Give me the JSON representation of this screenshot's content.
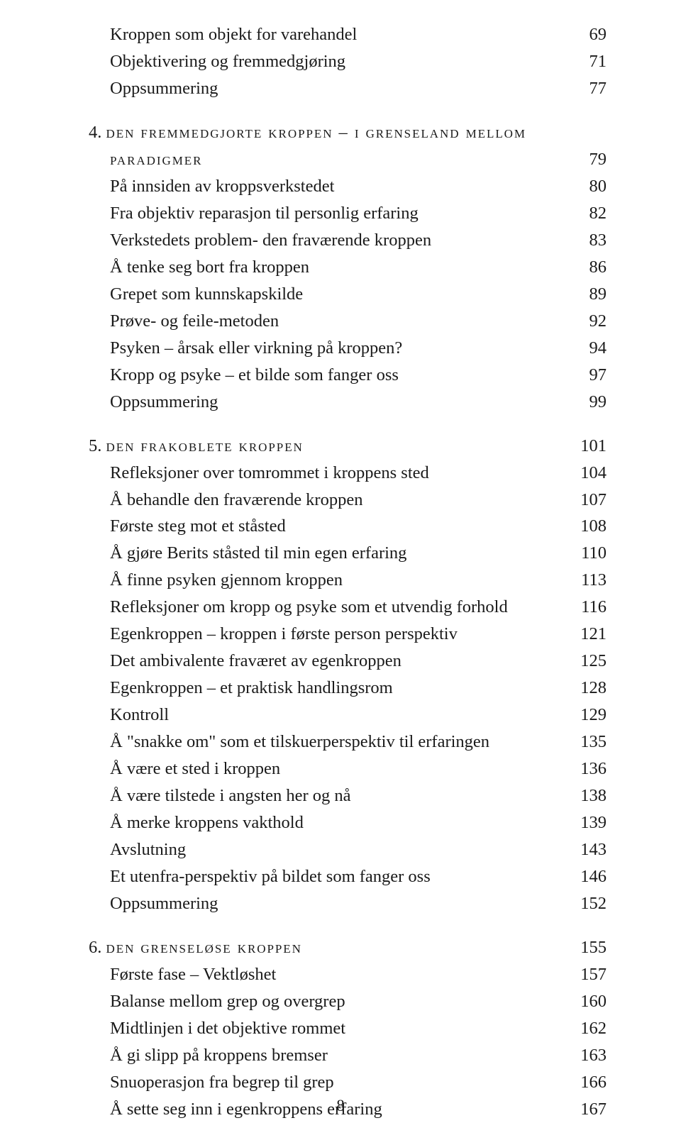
{
  "intro_rows": [
    {
      "label": "Kroppen som objekt for varehandel",
      "page": "69"
    },
    {
      "label": "Objektivering og fremmedgjøring",
      "page": "71"
    },
    {
      "label": "Oppsummering",
      "page": "77"
    }
  ],
  "chapters": [
    {
      "num": "4.",
      "title": "den fremmedgjorte kroppen – i grenseland mellom",
      "title2": "paradigmer",
      "page": "79",
      "rows": [
        {
          "label": "På innsiden av kroppsverkstedet",
          "page": "80"
        },
        {
          "label": "Fra objektiv reparasjon til personlig erfaring",
          "page": "82"
        },
        {
          "label": "Verkstedets problem- den fraværende kroppen",
          "page": "83"
        },
        {
          "label": "Å tenke seg bort fra kroppen",
          "page": "86"
        },
        {
          "label": "Grepet som kunnskapskilde",
          "page": "89"
        },
        {
          "label": "Prøve- og feile-metoden",
          "page": "92"
        },
        {
          "label": "Psyken – årsak eller virkning på kroppen?",
          "page": "94"
        },
        {
          "label": "Kropp og psyke – et bilde som fanger oss",
          "page": "97"
        },
        {
          "label": "Oppsummering",
          "page": "99"
        }
      ]
    },
    {
      "num": "5.",
      "title": "den frakoblete kroppen",
      "page": "101",
      "rows": [
        {
          "label": "Refleksjoner over tomrommet i kroppens sted",
          "page": "104"
        },
        {
          "label": "Å behandle den fraværende kroppen",
          "page": "107"
        },
        {
          "label": "Første steg mot et ståsted",
          "page": "108"
        },
        {
          "label": "Å gjøre Berits ståsted til min egen erfaring",
          "page": "110"
        },
        {
          "label": "Å finne psyken gjennom kroppen",
          "page": "113"
        },
        {
          "label": "Refleksjoner om kropp og psyke som et utvendig forhold",
          "page": "116"
        },
        {
          "label": "Egenkroppen – kroppen i første person perspektiv",
          "page": "121"
        },
        {
          "label": "Det ambivalente fraværet av egenkroppen",
          "page": "125"
        },
        {
          "label": "Egenkroppen – et praktisk handlingsrom",
          "page": "128"
        },
        {
          "label": "Kontroll",
          "page": "129"
        },
        {
          "label": "Å \"snakke om\" som et tilskuerperspektiv til erfaringen",
          "page": "135"
        },
        {
          "label": "Å være et sted i kroppen",
          "page": "136"
        },
        {
          "label": "Å være tilstede i angsten her og nå",
          "page": "138"
        },
        {
          "label": "Å merke kroppens vakthold",
          "page": "139"
        },
        {
          "label": "Avslutning",
          "page": "143"
        },
        {
          "label": "Et utenfra-perspektiv på bildet som fanger oss",
          "page": "146"
        },
        {
          "label": "Oppsummering",
          "page": "152"
        }
      ]
    },
    {
      "num": "6.",
      "title": "den grenseløse kroppen",
      "page": "155",
      "rows": [
        {
          "label": "Første fase – Vektløshet",
          "page": "157"
        },
        {
          "label": "Balanse mellom grep og overgrep",
          "page": "160"
        },
        {
          "label": "Midtlinjen i det objektive rommet",
          "page": "162"
        },
        {
          "label": "Å gi slipp på kroppens bremser",
          "page": "163"
        },
        {
          "label": "Snuoperasjon fra begrep til grep",
          "page": "166"
        },
        {
          "label": "Å sette seg inn i egenkroppens erfaring",
          "page": "167"
        }
      ]
    }
  ],
  "footer_page": "8"
}
